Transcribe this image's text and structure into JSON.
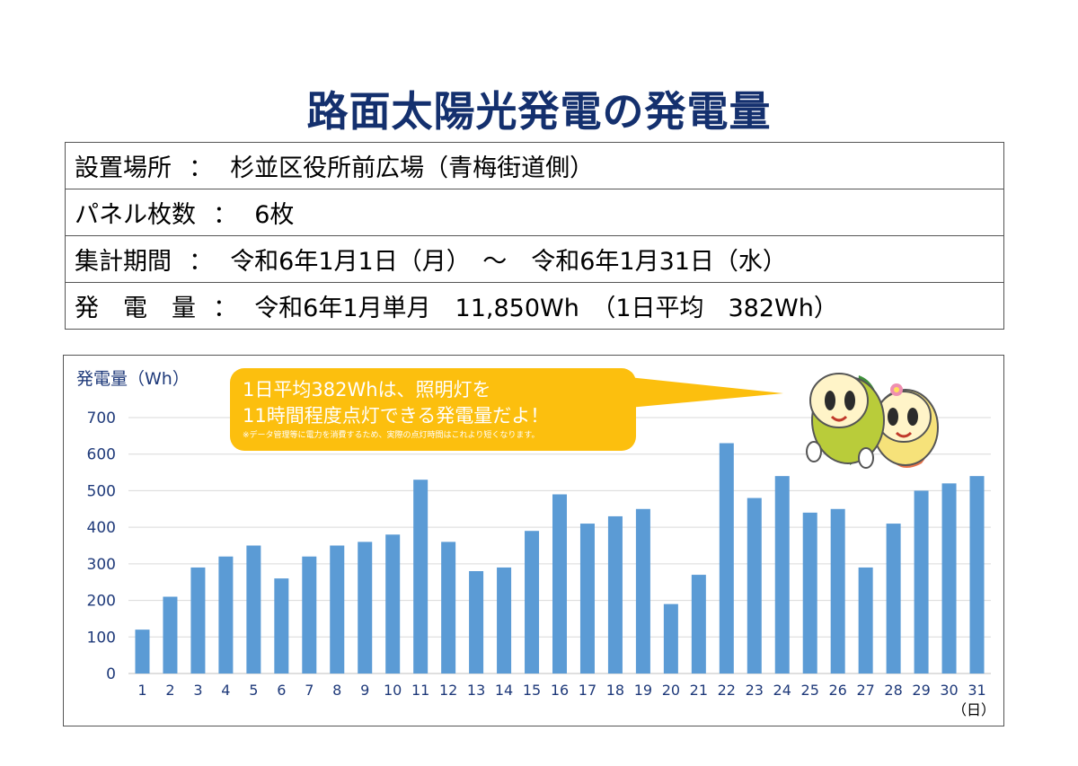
{
  "title": "路面太陽光発電の発電量",
  "info_rows": [
    {
      "label": "設置場所",
      "colon": "：",
      "value": "杉並区役所前広場（青梅街道側）"
    },
    {
      "label": "パネル枚数",
      "colon": "：",
      "value": "6枚"
    },
    {
      "label": "集計期間",
      "colon": "：",
      "value": "令和6年1月1日（月）　～　令和6年1月31日（水）"
    },
    {
      "label": "発　電　量",
      "colon": "：",
      "value": "令和6年1月単月　11,850Wh　（1日平均　382Wh）"
    }
  ],
  "callout": {
    "line1": "1日平均382Whは、照明灯を",
    "line2": "11時間程度点灯できる発電量だよ！",
    "note": "※データ管理等に電力を消費するため、実際の点灯時間はこれより短くなります。"
  },
  "colors": {
    "title": "#14306e",
    "bar": "#5b9bd5",
    "callout": "#fcbf0e",
    "axis_text": "#1f3a7a"
  },
  "mascot_icon": "sun-mascot-pair",
  "chart_data": {
    "type": "bar",
    "ylabel": "発電量（Wh）",
    "xunit": "（日）",
    "ylim": [
      0,
      700
    ],
    "yticks": [
      0,
      100,
      200,
      300,
      400,
      500,
      600,
      700
    ],
    "grid": true,
    "categories": [
      "1",
      "2",
      "3",
      "4",
      "5",
      "6",
      "7",
      "8",
      "9",
      "10",
      "11",
      "12",
      "13",
      "14",
      "15",
      "16",
      "17",
      "18",
      "19",
      "20",
      "21",
      "22",
      "23",
      "24",
      "25",
      "26",
      "27",
      "28",
      "29",
      "30",
      "31"
    ],
    "values": [
      120,
      210,
      290,
      320,
      350,
      260,
      320,
      350,
      360,
      380,
      530,
      360,
      280,
      290,
      390,
      490,
      410,
      430,
      450,
      190,
      270,
      630,
      480,
      540,
      440,
      450,
      290,
      410,
      500,
      520,
      540
    ]
  }
}
